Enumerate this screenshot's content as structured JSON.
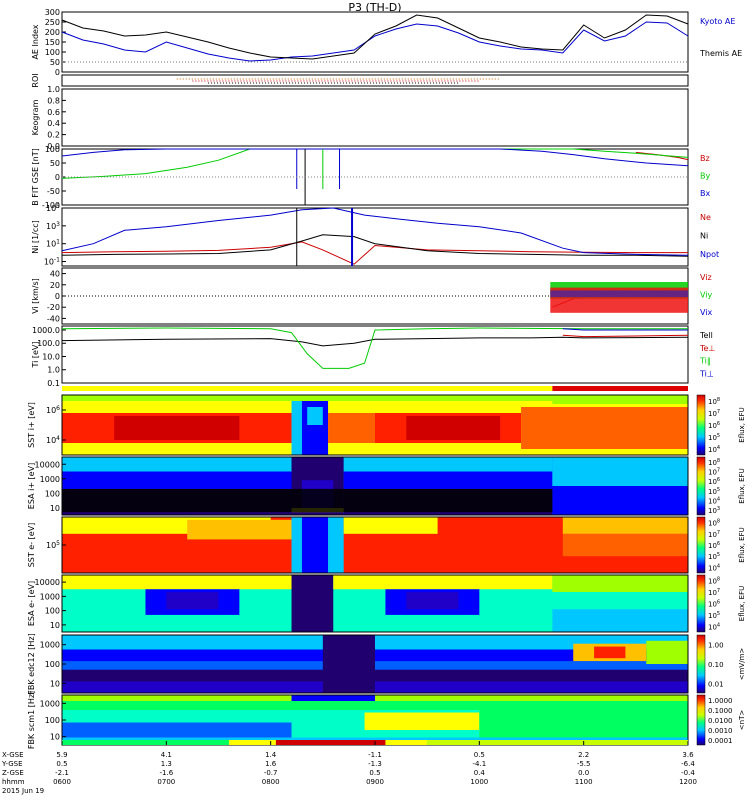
{
  "title": "P3 (TH-D)",
  "time_axis": {
    "rows": [
      {
        "label": "X-GSE",
        "values": [
          "5.9",
          "4.1",
          "1.4",
          "-1.1",
          "0.5",
          "2.2",
          "3.6"
        ]
      },
      {
        "label": "Y-GSE",
        "values": [
          "0.5",
          "1.3",
          "1.6",
          "-1.3",
          "-4.1",
          "-5.5",
          "-6.4"
        ]
      },
      {
        "label": "Z-GSE",
        "values": [
          "-2.1",
          "-1.6",
          "-0.7",
          "0.5",
          "0.4",
          "0.0",
          "-0.4"
        ]
      },
      {
        "label": "hhmm",
        "values": [
          "0600",
          "0700",
          "0800",
          "0900",
          "1000",
          "1100",
          "1200"
        ]
      }
    ],
    "date": "2015 Jun 19",
    "hours": [
      6,
      7,
      8,
      9,
      10,
      11,
      12
    ]
  },
  "chart_data": [
    {
      "type": "line",
      "ylabel": "AE Index",
      "ylim": [
        0,
        300
      ],
      "yticks": [
        "0",
        "50",
        "100",
        "150",
        "200",
        "250",
        "300"
      ],
      "series": [
        {
          "name": "Kyoto AE",
          "color": "#0000cc",
          "x": [
            6.0,
            6.2,
            6.4,
            6.6,
            6.8,
            7.0,
            7.2,
            7.4,
            7.6,
            7.8,
            8.0,
            8.2,
            8.4,
            8.6,
            8.8,
            9.0,
            9.2,
            9.4,
            9.6,
            9.8,
            10.0,
            10.2,
            10.4,
            10.6,
            10.8,
            11.0,
            11.2,
            11.4,
            11.6,
            11.8,
            12.0
          ],
          "values": [
            200,
            160,
            140,
            110,
            100,
            150,
            120,
            90,
            70,
            55,
            60,
            75,
            80,
            95,
            110,
            180,
            215,
            240,
            230,
            195,
            150,
            130,
            115,
            110,
            95,
            210,
            155,
            180,
            250,
            245,
            180
          ]
        },
        {
          "name": "Themis AE",
          "color": "#000000",
          "x": [
            6.0,
            6.2,
            6.4,
            6.6,
            6.8,
            7.0,
            7.2,
            7.4,
            7.6,
            7.8,
            8.0,
            8.2,
            8.4,
            8.6,
            8.8,
            9.0,
            9.2,
            9.4,
            9.6,
            9.8,
            10.0,
            10.2,
            10.4,
            10.6,
            10.8,
            11.0,
            11.2,
            11.4,
            11.6,
            11.8,
            12.0
          ],
          "values": [
            260,
            220,
            205,
            180,
            185,
            200,
            175,
            150,
            120,
            95,
            75,
            70,
            65,
            80,
            95,
            190,
            230,
            285,
            270,
            220,
            170,
            150,
            125,
            115,
            110,
            235,
            170,
            210,
            285,
            280,
            240
          ]
        }
      ]
    },
    {
      "type": "line",
      "ylabel": "ROI",
      "note": "orbit region-of-interest flags",
      "flag_range_hours": [
        7.1,
        10.2
      ]
    },
    {
      "type": "line",
      "ylabel": "Keogram",
      "ylim": [
        0.0,
        1.0
      ],
      "yticks": [
        "0.0",
        "0.2",
        "0.4",
        "0.6",
        "0.8",
        "1.0"
      ]
    },
    {
      "type": "line",
      "ylabel": "B FIT GSE [nT]",
      "ylim": [
        -100,
        100
      ],
      "yticks": [
        "-100",
        "-50",
        "0",
        "50",
        "100"
      ],
      "series": [
        {
          "name": "Bz",
          "color": "#cc0000",
          "x": [
            11.5,
            11.7,
            11.9,
            12.0
          ],
          "values": [
            88,
            80,
            70,
            62
          ]
        },
        {
          "name": "By",
          "color": "#00cc00",
          "x": [
            6.0,
            6.4,
            6.8,
            7.2,
            7.5,
            7.8,
            10.9,
            11.2,
            11.5,
            11.8,
            12.0
          ],
          "values": [
            -5,
            2,
            12,
            35,
            60,
            100,
            100,
            92,
            85,
            76,
            70
          ]
        },
        {
          "name": "Bx",
          "color": "#0000cc",
          "x": [
            6.0,
            6.3,
            6.6,
            7.0,
            10.2,
            10.6,
            10.9,
            11.2,
            11.6,
            12.0
          ],
          "values": [
            75,
            88,
            97,
            100,
            100,
            92,
            80,
            65,
            50,
            40
          ]
        }
      ]
    },
    {
      "type": "line",
      "ylabel": "Ni [1/cc]",
      "ylim": [
        -1.5,
        5
      ],
      "yticks": [
        "10^-1",
        "10^1",
        "10^3",
        "10^5"
      ],
      "series": [
        {
          "name": "Ne",
          "color": "#cc0000",
          "x": [
            6.0,
            6.5,
            7.0,
            7.5,
            8.0,
            8.3,
            8.5,
            8.8,
            9.0,
            9.5,
            10.0,
            10.5,
            11.0,
            11.5,
            12.0
          ],
          "values": [
            0.0,
            0.1,
            0.15,
            0.25,
            0.6,
            1.2,
            0.3,
            -1.3,
            0.8,
            0.3,
            0.2,
            0.1,
            0.05,
            0.0,
            0.0
          ]
        },
        {
          "name": "Ni",
          "color": "#000000",
          "x": [
            6.0,
            6.5,
            7.0,
            7.5,
            8.0,
            8.3,
            8.5,
            8.8,
            9.0,
            9.5,
            10.0,
            10.5,
            11.0,
            11.5,
            12.0
          ],
          "values": [
            -0.3,
            -0.2,
            -0.15,
            -0.1,
            0.3,
            1.3,
            2.0,
            1.8,
            1.0,
            0.2,
            -0.1,
            -0.2,
            -0.3,
            -0.3,
            -0.4
          ]
        },
        {
          "name": "Npot",
          "color": "#0000cc",
          "x": [
            6.0,
            6.3,
            6.6,
            7.0,
            7.5,
            8.0,
            8.3,
            8.6,
            8.9,
            9.2,
            9.6,
            10.0,
            10.4,
            10.8,
            11.0,
            11.5,
            12.0
          ],
          "values": [
            0.2,
            1.0,
            2.5,
            2.9,
            3.6,
            4.2,
            4.8,
            5.0,
            4.2,
            3.8,
            3.3,
            2.9,
            2.2,
            0.5,
            0.0,
            -0.2,
            -0.3
          ]
        }
      ]
    },
    {
      "type": "line",
      "ylabel": "Vi [km/s]",
      "ylim": [
        -50,
        50
      ],
      "yticks": [
        "-40",
        "-20",
        "0",
        "20",
        "40"
      ],
      "series": [
        {
          "name": "Viz",
          "color": "#cc0000",
          "x": [
            10.7,
            10.9,
            11.1,
            11.3,
            11.5,
            11.7,
            11.9,
            12.0
          ],
          "values": [
            -20,
            -5,
            2,
            5,
            5,
            6,
            6,
            6
          ]
        },
        {
          "name": "Viy",
          "color": "#00cc00",
          "x": [
            10.7,
            10.9,
            11.1,
            11.3,
            11.5,
            11.7,
            11.9,
            12.0
          ],
          "values": [
            10,
            12,
            10,
            8,
            10,
            8,
            7,
            6
          ]
        },
        {
          "name": "Vix",
          "color": "#0000cc",
          "x": [
            10.7,
            10.9,
            11.1,
            11.3,
            11.5,
            11.7,
            11.9,
            12.0
          ],
          "values": [
            5,
            6,
            5,
            5,
            6,
            5,
            4,
            4
          ]
        }
      ]
    },
    {
      "type": "line",
      "ylabel": "Ti [eV]",
      "ylim": [
        -1,
        3.3
      ],
      "yticks": [
        "0.1",
        "1.0",
        "10.0",
        "100.0",
        "1000.0"
      ],
      "series": [
        {
          "name": "Tell",
          "color": "#000000",
          "x": [
            6.0,
            7.0,
            8.0,
            8.3,
            8.5,
            8.8,
            9.0,
            9.5,
            10.0,
            10.5,
            10.8,
            11.0,
            12.0
          ],
          "values": [
            2.2,
            2.3,
            2.35,
            2.1,
            1.8,
            2.0,
            2.3,
            2.35,
            2.4,
            2.4,
            2.45,
            2.4,
            2.45
          ]
        },
        {
          "name": "Te⊥",
          "color": "#cc0000",
          "x": [
            10.8,
            11.0,
            12.0
          ],
          "values": [
            2.6,
            2.5,
            2.6
          ]
        },
        {
          "name": "Ti‖",
          "color": "#00cc00",
          "x": [
            6.0,
            7.0,
            8.0,
            8.2,
            8.35,
            8.5,
            8.75,
            8.9,
            9.0,
            9.5,
            10.0,
            11.0,
            12.0
          ],
          "values": [
            3.1,
            3.15,
            3.1,
            2.8,
            1.2,
            0.1,
            0.1,
            0.5,
            3.0,
            3.1,
            3.15,
            3.1,
            3.1
          ]
        },
        {
          "name": "Ti⊥",
          "color": "#0000cc",
          "x": [
            10.8,
            11.0,
            12.0
          ],
          "values": [
            3.1,
            3.0,
            3.0
          ]
        }
      ]
    },
    {
      "type": "heatmap",
      "ylabel": "SST i+ [eV]",
      "yticks": [
        "10^4",
        "10^6"
      ],
      "colorbar_label": "Eflux, EFU",
      "colorbar_ticks": [
        "10^4",
        "10^5",
        "10^6",
        "10^7",
        "10^8"
      ],
      "note": "magnetosheath band near 0805-0845 UT"
    },
    {
      "type": "heatmap",
      "ylabel": "ESA i+ [eV]",
      "yticks": [
        "10",
        "100",
        "1000",
        "10000"
      ],
      "colorbar_label": "Eflux, EFU",
      "colorbar_ticks": [
        "10^3",
        "10^4",
        "10^5",
        "10^6",
        "10^7",
        "10^8"
      ]
    },
    {
      "type": "heatmap",
      "ylabel": "SST e- [eV]",
      "yticks": [
        "10^5"
      ],
      "colorbar_label": "Eflux, EFU",
      "colorbar_ticks": [
        "10^4",
        "10^5",
        "10^6",
        "10^7",
        "10^8"
      ]
    },
    {
      "type": "heatmap",
      "ylabel": "ESA e- [eV]",
      "yticks": [
        "10",
        "100",
        "1000",
        "10000"
      ],
      "colorbar_label": "Eflux, EFU",
      "colorbar_ticks": [
        "10^4",
        "10^5",
        "10^6",
        "10^7",
        "10^8"
      ]
    },
    {
      "type": "heatmap",
      "ylabel": "FBK edc12 [Hz]",
      "yticks": [
        "10",
        "100",
        "1000"
      ],
      "colorbar_label": "<mV/m>",
      "colorbar_ticks": [
        "0.01",
        "0.10",
        "1.00"
      ]
    },
    {
      "type": "heatmap",
      "ylabel": "FBK scm1 [Hz]",
      "yticks": [
        "10",
        "100",
        "1000"
      ],
      "colorbar_label": "<nT>",
      "colorbar_ticks": [
        "0.0001",
        "0.0010",
        "0.0100",
        "0.1000",
        "1.0000"
      ]
    }
  ]
}
